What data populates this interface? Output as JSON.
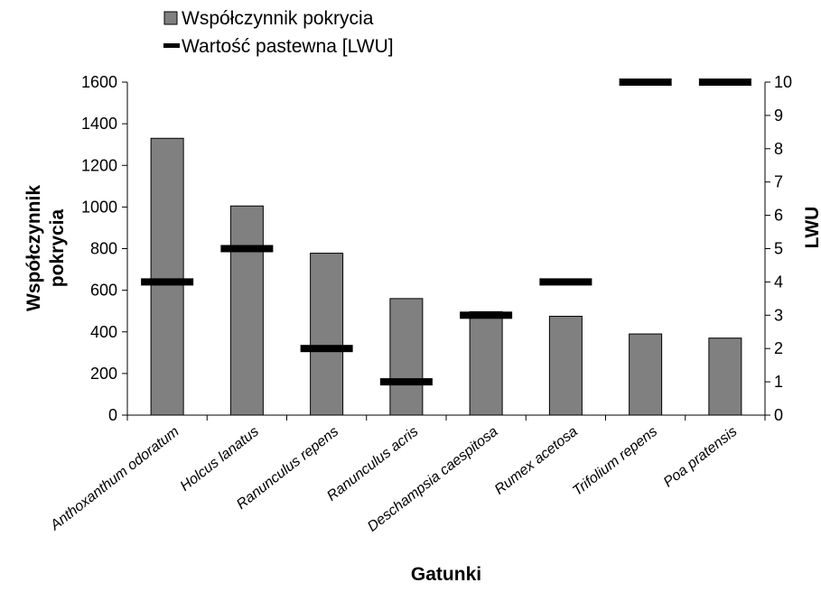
{
  "chart_data": {
    "type": "bar",
    "title": "",
    "categories": [
      "Anthoxanthum odoratum",
      "Holcus lanatus",
      "Ranunculus repens",
      "Ranunculus acris",
      "Deschampsia caespitosa",
      "Rumex acetosa",
      "Trifolium repens",
      "Poa pratensis"
    ],
    "series": [
      {
        "name": "Współczynnik pokrycia",
        "type": "bar",
        "axis": "left",
        "color": "#808080",
        "values": [
          1330,
          1005,
          778,
          560,
          497,
          475,
          390,
          370
        ]
      },
      {
        "name": "Wartość pastewna [LWU]",
        "type": "marker",
        "axis": "right",
        "color": "#000000",
        "values": [
          4,
          5,
          2,
          1,
          3,
          4,
          10,
          10
        ]
      }
    ],
    "xlabel": "Gatunki",
    "ylabel": "Współczynnik pokrycia",
    "ylabel_lines": [
      "Współczynnik",
      "pokrycia"
    ],
    "y2label": "LWU",
    "ylim": [
      0,
      1600
    ],
    "y2lim": [
      0,
      10
    ],
    "yticks": [
      "0",
      "200",
      "400",
      "600",
      "800",
      "1000",
      "1200",
      "1400",
      "1600"
    ],
    "y2ticks": [
      "0",
      "1",
      "2",
      "3",
      "4",
      "5",
      "6",
      "7",
      "8",
      "9",
      "10"
    ],
    "grid": false,
    "legend_position": "top-left"
  }
}
